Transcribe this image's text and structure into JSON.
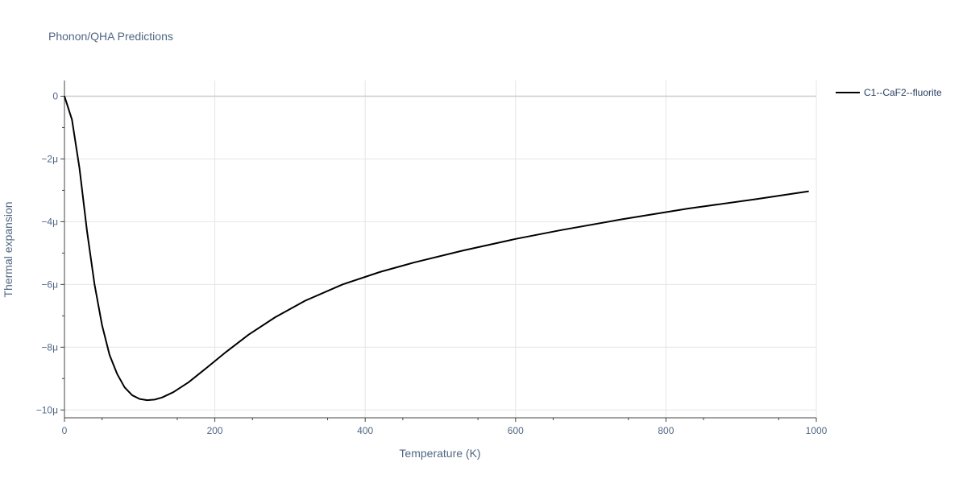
{
  "chart_data": {
    "type": "line",
    "title": "Phonon/QHA Predictions",
    "xlabel": "Temperature (K)",
    "ylabel": "Thermal expansion",
    "xlim": [
      0,
      1000
    ],
    "ylim": [
      -10.25,
      0.5
    ],
    "y_unit_suffix": "μ",
    "x_ticks": [
      0,
      200,
      400,
      600,
      800,
      1000
    ],
    "y_ticks": [
      0,
      -2,
      -4,
      -6,
      -8,
      -10
    ],
    "grid": true,
    "legend_position": "top-right",
    "series": [
      {
        "name": "C1--CaF2--fluorite",
        "color": "#000000",
        "x": [
          0,
          10,
          20,
          30,
          40,
          50,
          60,
          70,
          80,
          90,
          100,
          110,
          120,
          130,
          145,
          165,
          190,
          215,
          245,
          280,
          320,
          370,
          420,
          465,
          530,
          600,
          660,
          740,
          830,
          920,
          990
        ],
        "y": [
          0,
          -0.75,
          -2.3,
          -4.3,
          -6.0,
          -7.3,
          -8.25,
          -8.85,
          -9.28,
          -9.53,
          -9.65,
          -9.69,
          -9.67,
          -9.6,
          -9.43,
          -9.12,
          -8.64,
          -8.15,
          -7.6,
          -7.05,
          -6.52,
          -6.0,
          -5.6,
          -5.3,
          -4.92,
          -4.55,
          -4.27,
          -3.93,
          -3.58,
          -3.28,
          -3.03
        ]
      }
    ]
  }
}
